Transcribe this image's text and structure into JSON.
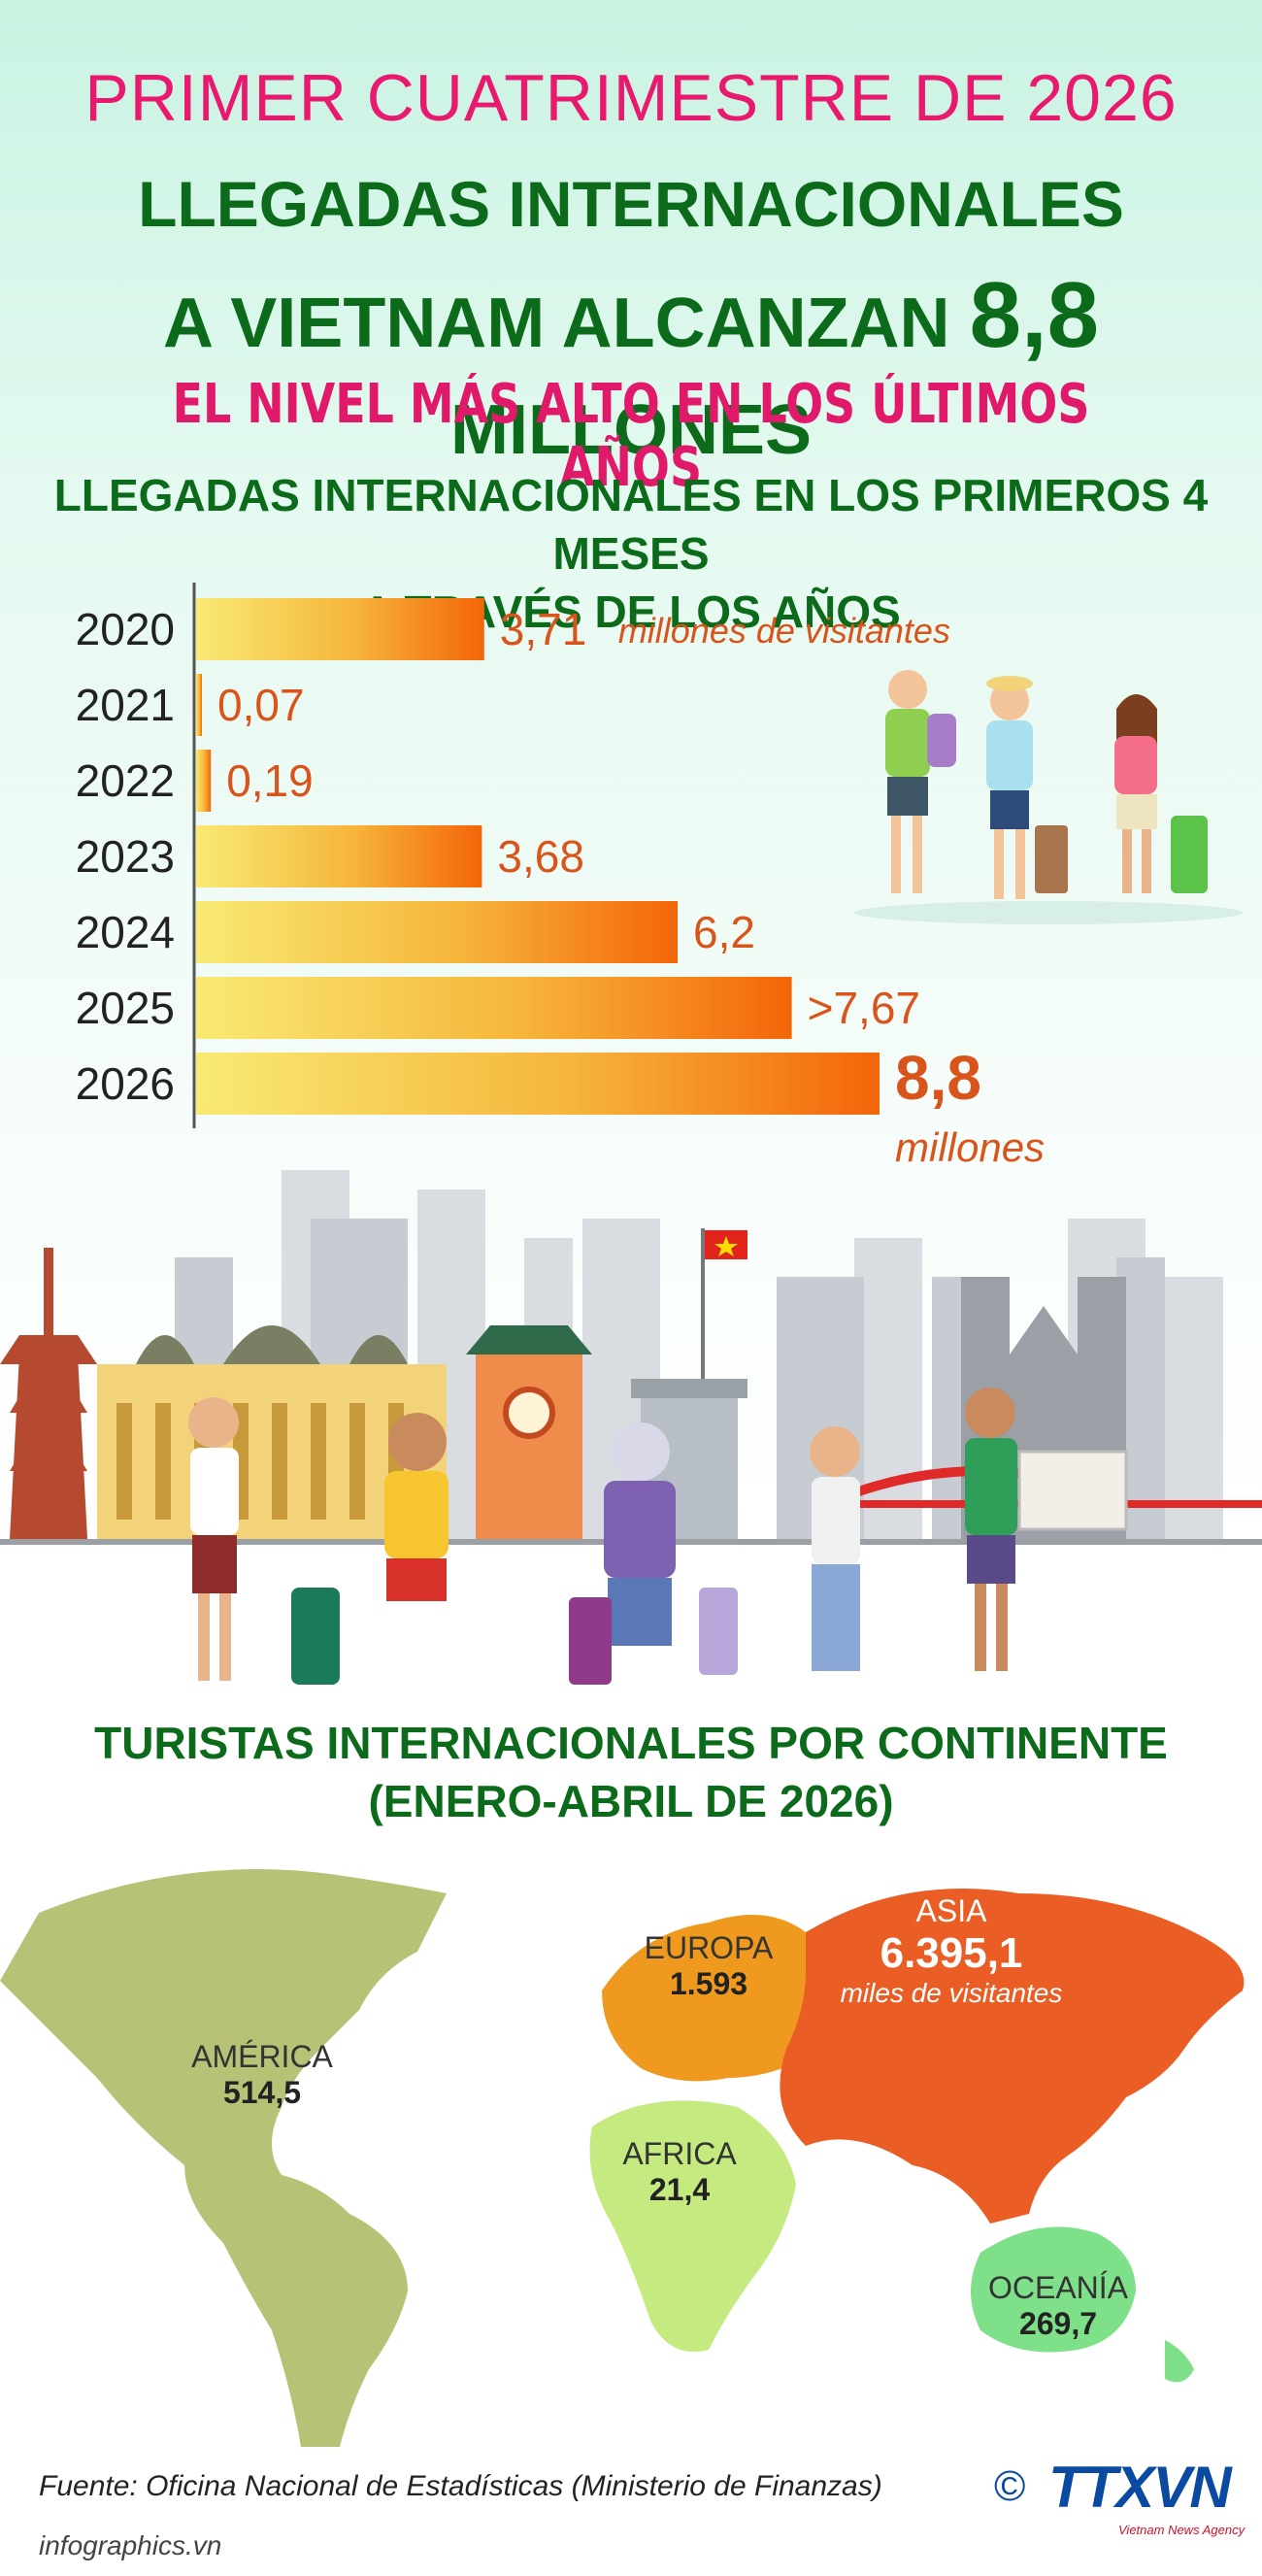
{
  "header": {
    "line1": "PRIMER CUATRIMESTRE DE 2026",
    "line2": "LLEGADAS INTERNACIONALES",
    "line3_prefix": "A VIETNAM ALCANZAN",
    "line3_big": "8,8",
    "line3_suffix": "MILLONES",
    "line4": "EL NIVEL MÁS ALTO EN LOS ÚLTIMOS AÑOS"
  },
  "section1": {
    "title_line1": "LLEGADAS INTERNACIONALES EN LOS PRIMEROS 4 MESES",
    "title_line2": "A TRAVÉS DE LOS AÑOS"
  },
  "chart_data": {
    "type": "bar",
    "orientation": "horizontal",
    "categories": [
      "2020",
      "2021",
      "2022",
      "2023",
      "2024",
      "2025",
      "2026"
    ],
    "values": [
      3.71,
      0.07,
      0.19,
      3.68,
      6.2,
      7.67,
      8.8
    ],
    "value_labels": [
      "3,71",
      "0,07",
      "0,19",
      "3,68",
      "6,2",
      ">7,67",
      "8,8"
    ],
    "unit_label_first": "millones de visitantes",
    "unit_label_last": "millones",
    "colors": {
      "bar_start": "#f7e66a",
      "bar_end": "#f46a0a",
      "value_text": "#d9541b"
    }
  },
  "section2": {
    "title_line1": "TURISTAS INTERNACIONALES POR CONTINENTE",
    "title_line2": "(ENERO-ABRIL DE 2026)"
  },
  "map_data": {
    "regions": [
      {
        "name": "AMÉRICA",
        "value": "514,5",
        "color": "#b7c277"
      },
      {
        "name": "EUROPA",
        "value": "1.593",
        "color": "#ef9a1f"
      },
      {
        "name": "ASIA",
        "value": "6.395,1",
        "unit": "miles de visitantes",
        "color": "#ea5d24"
      },
      {
        "name": "AFRICA",
        "value": "21,4",
        "color": "#c5ea7f"
      },
      {
        "name": "OCEANÍA",
        "value": "269,7",
        "color": "#7fe08a"
      }
    ]
  },
  "footer": {
    "source": "Fuente: Oficina Nacional de Estadísticas (Ministerio de Finanzas)",
    "credit": "infographics.vn",
    "logo_text": "TTXVN",
    "logo_sub": "Vietnam News Agency",
    "copyright": "©"
  }
}
